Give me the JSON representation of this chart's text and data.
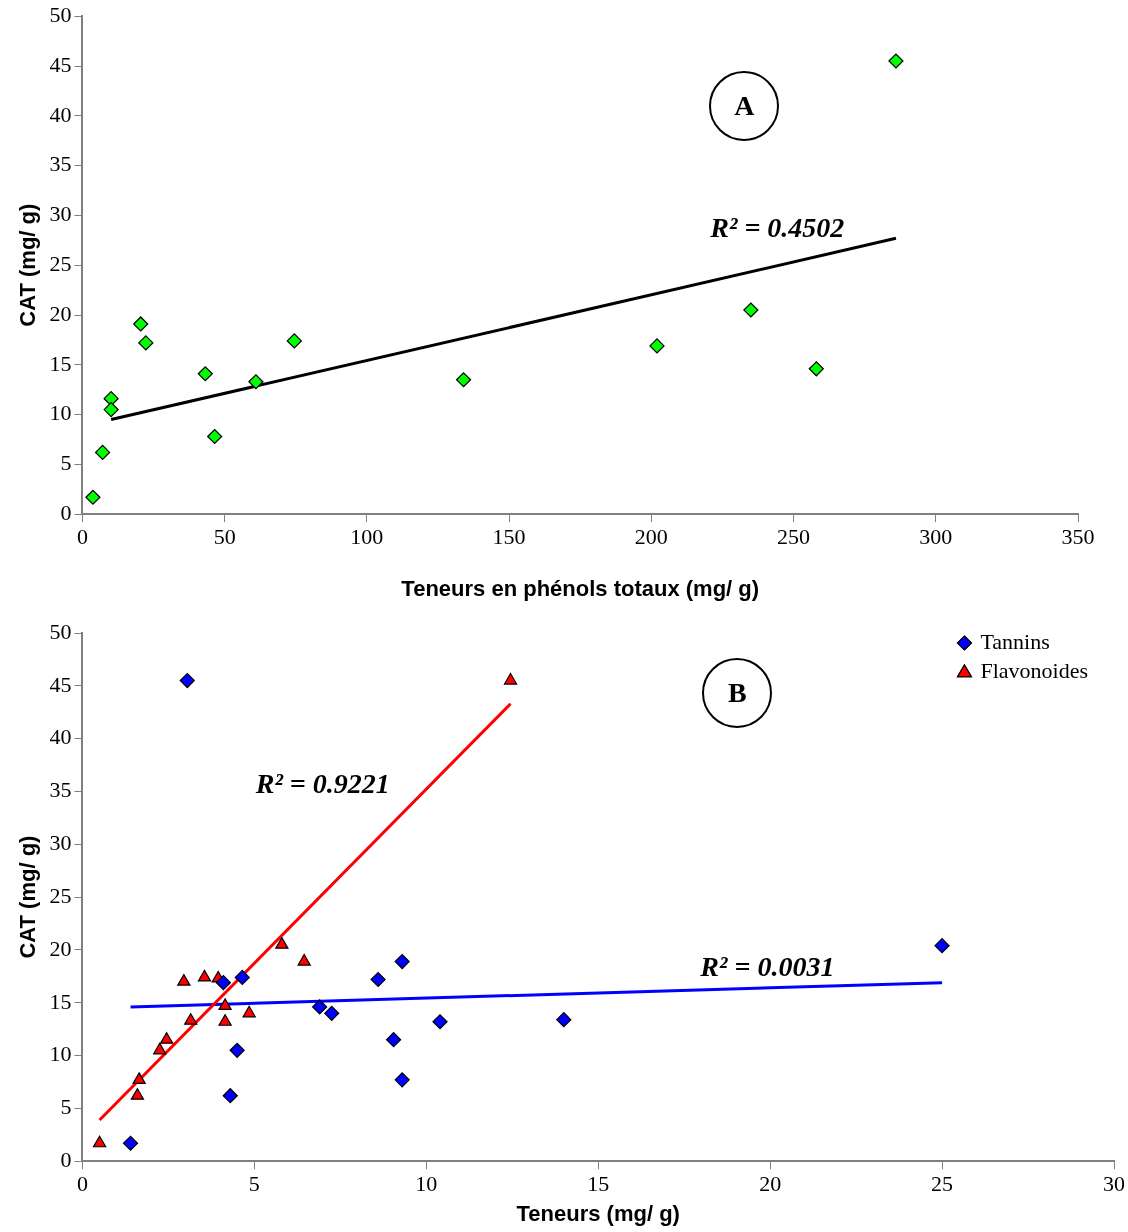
{
  "chart_data": [
    {
      "type": "scatter",
      "xlabel": "Teneurs en phénols totaux (mg/ g)",
      "ylabel": "CAT (mg/ g)",
      "xlim": [
        0,
        350
      ],
      "ylim": [
        0,
        50
      ],
      "xticks": [
        0,
        50,
        100,
        150,
        200,
        250,
        300,
        350
      ],
      "yticks": [
        0,
        5,
        10,
        15,
        20,
        25,
        30,
        35,
        40,
        45,
        50
      ],
      "grid": false,
      "legend": false,
      "annotations": [
        "A",
        "R² = 0.4502"
      ],
      "series": [
        {
          "color": "#00ff00",
          "marker": "diamond",
          "x": [
            3.7,
            7.1,
            10.1,
            10.1,
            20.5,
            22.3,
            43.2,
            46.5,
            61,
            74.5,
            134,
            202,
            235,
            258,
            286
          ],
          "values": [
            1.7,
            6.2,
            11.6,
            10.5,
            19.1,
            17.2,
            14.1,
            7.8,
            13.3,
            17.4,
            13.5,
            16.9,
            20.5,
            14.6,
            45.5
          ]
        },
        {
          "type": "line",
          "color": "#000000",
          "marker": "none",
          "line_style": "solid",
          "x": [
            10.1,
            286
          ],
          "values": [
            9.5,
            27.7
          ]
        }
      ]
    },
    {
      "type": "scatter",
      "xlabel": "Teneurs (mg/ g)",
      "ylabel": "CAT (mg/ g)",
      "xlim": [
        0,
        30
      ],
      "ylim": [
        0,
        50
      ],
      "xticks": [
        0,
        5,
        10,
        15,
        20,
        25,
        30
      ],
      "yticks": [
        0,
        5,
        10,
        15,
        20,
        25,
        30,
        35,
        40,
        45,
        50
      ],
      "grid": false,
      "legend": "top right",
      "annotations": [
        "B",
        "R² = 0.9221",
        "R² = 0.0031"
      ],
      "series": [
        {
          "name": "Tannins",
          "color": "#0000ff",
          "marker": "diamond",
          "x": [
            3.05,
            1.4,
            4.5,
            4.3,
            4.1,
            4.65,
            6.9,
            7.25,
            8.6,
            9.3,
            9.05,
            9.3,
            10.4,
            14.0,
            25.0
          ],
          "values": [
            45.5,
            1.7,
            10.5,
            6.2,
            16.9,
            17.4,
            14.6,
            14.0,
            17.2,
            18.9,
            11.5,
            7.7,
            13.2,
            13.4,
            20.4
          ]
        },
        {
          "name": "Flavonoides",
          "color": "#ff0000",
          "marker": "triangle",
          "x": [
            0.5,
            1.6,
            1.65,
            2.25,
            2.45,
            2.95,
            3.15,
            3.55,
            3.95,
            4.15,
            4.15,
            4.85,
            5.8,
            6.45,
            12.45
          ],
          "values": [
            1.7,
            6.2,
            7.7,
            10.5,
            11.5,
            17.0,
            13.3,
            17.4,
            17.3,
            13.2,
            14.7,
            14.0,
            20.5,
            18.9,
            45.5
          ]
        },
        {
          "type": "line",
          "color": "#ff0000",
          "marker": "none",
          "line_style": "solid",
          "x": [
            0.5,
            12.45
          ],
          "values": [
            3.9,
            43.3
          ]
        },
        {
          "type": "line",
          "color": "#0000ff",
          "marker": "none",
          "line_style": "solid",
          "x": [
            1.4,
            25.0
          ],
          "values": [
            14.6,
            16.9
          ]
        }
      ]
    }
  ]
}
